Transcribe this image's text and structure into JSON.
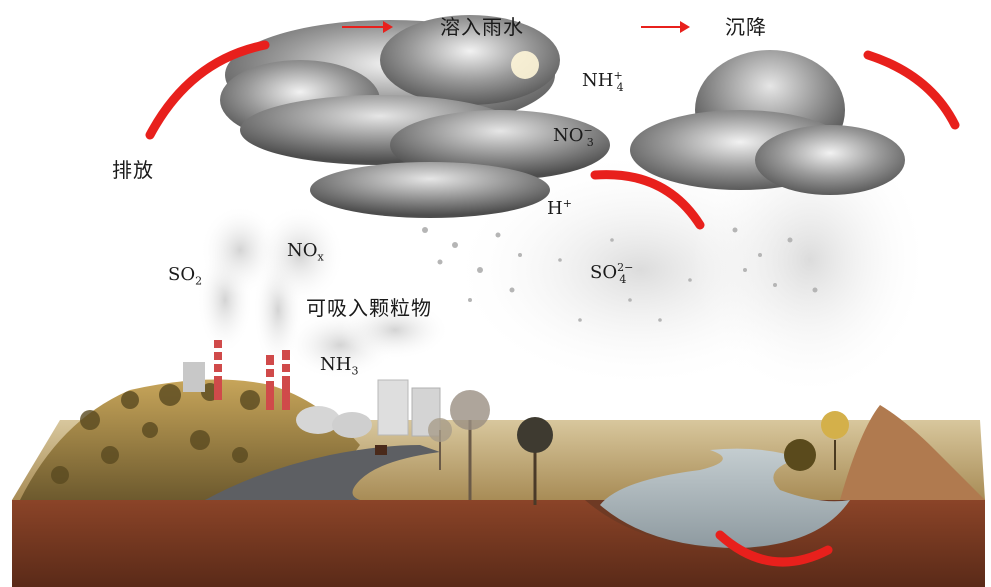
{
  "labels": {
    "emit": "排放",
    "dissolve": "溶入雨水",
    "deposit": "沉降",
    "particles": "可吸入颗粒物"
  },
  "species": {
    "so2": {
      "base": "SO",
      "sub": "2",
      "sup": ""
    },
    "nox": {
      "base": "NO",
      "sub": "x",
      "sup": ""
    },
    "nh3": {
      "base": "NH",
      "sub": "3",
      "sup": ""
    },
    "nh4": {
      "base": "NH",
      "sub": "4",
      "sup": "+"
    },
    "no3": {
      "base": "NO",
      "sub": "3",
      "sup": "−"
    },
    "h": {
      "base": "H",
      "sub": "",
      "sup": "+"
    },
    "so4": {
      "base": "SO",
      "sub": "4",
      "sup": "2−"
    }
  },
  "colors": {
    "arrow": "#e8201c",
    "soil": "#7a3a22",
    "soil_dark": "#4e2414",
    "cloud_dark": "#5a5a5a",
    "cloud_light": "#d9d9d9",
    "water": "#a9b4b8",
    "grass": "#c9b07a",
    "road": "#5d5f63"
  }
}
